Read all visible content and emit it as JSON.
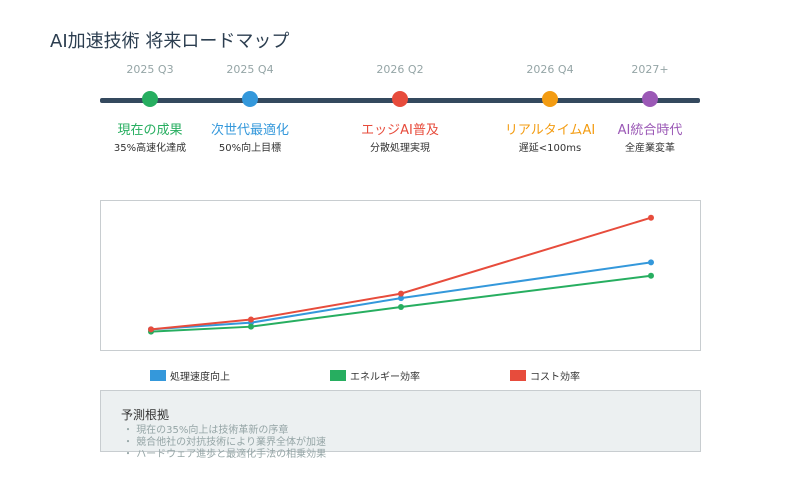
{
  "title": "AI加速技術 将来ロードマップ",
  "milestones": [
    {
      "date": "2025 Q3",
      "label": "現在の成果",
      "desc": "35%高速化達成",
      "color": "#27ae60"
    },
    {
      "date": "2025 Q4",
      "label": "次世代最適化",
      "desc": "50%向上目標",
      "color": "#3498db"
    },
    {
      "date": "2026 Q2",
      "label": "エッジAI普及",
      "desc": "分散処理実現",
      "color": "#e74c3c"
    },
    {
      "date": "2026 Q4",
      "label": "リアルタイムAI",
      "desc": "遅延<100ms",
      "color": "#f39c12"
    },
    {
      "date": "2027+",
      "label": "AI統合時代",
      "desc": "全産業変革",
      "color": "#9b59b6"
    }
  ],
  "chart_data": {
    "type": "line",
    "x": [
      "2025 Q3",
      "2025 Q4",
      "2026 Q2",
      "2026 Q4",
      "2027+"
    ],
    "series": [
      {
        "name": "処理速度向上",
        "color": "#3498db",
        "values": [
          35,
          50,
          105,
          null,
          185
        ]
      },
      {
        "name": "エネルギー効率",
        "color": "#27ae60",
        "values": [
          30,
          41,
          85,
          null,
          155
        ]
      },
      {
        "name": "コスト効率",
        "color": "#e74c3c",
        "values": [
          35,
          57,
          115,
          null,
          285
        ]
      }
    ],
    "ylim": [
      0,
      300
    ],
    "grid": false,
    "legend": "bottom"
  },
  "basis": {
    "title": "予測根拠",
    "items": [
      "現在の35%向上は技術革新の序章",
      "競合他社の対抗技術により業界全体が加速",
      "ハードウェア進歩と最適化手法の相乗効果"
    ]
  }
}
